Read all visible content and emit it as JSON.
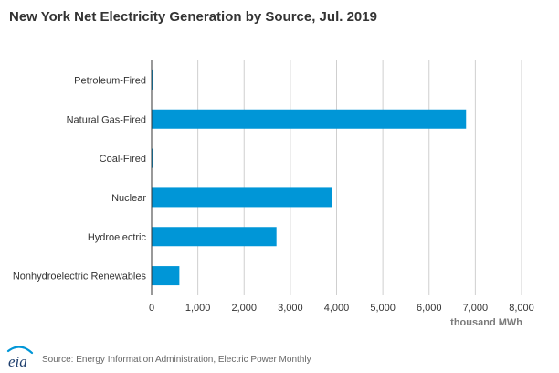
{
  "chart_data": {
    "type": "bar",
    "orientation": "horizontal",
    "title": "New York Net Electricity Generation by Source, Jul. 2019",
    "categories": [
      "Petroleum-Fired",
      "Natural Gas-Fired",
      "Coal-Fired",
      "Nuclear",
      "Hydroelectric",
      "Nonhydroelectric Renewables"
    ],
    "values": [
      5,
      6800,
      20,
      3900,
      2700,
      600
    ],
    "xlabel": "thousand MWh",
    "ylabel": "",
    "xlim": [
      0,
      8000
    ],
    "xticks": [
      "0",
      "1,000",
      "2,000",
      "3,000",
      "4,000",
      "5,000",
      "6,000",
      "7,000",
      "8,000"
    ],
    "xtick_values": [
      0,
      1000,
      2000,
      3000,
      4000,
      5000,
      6000,
      7000,
      8000
    ],
    "bar_color": "#0096d7",
    "grid": true,
    "grid_color": "#cfcfcf"
  },
  "footer": {
    "logo_text": "eia",
    "source": "Source: Energy Information Administration, Electric Power Monthly"
  }
}
